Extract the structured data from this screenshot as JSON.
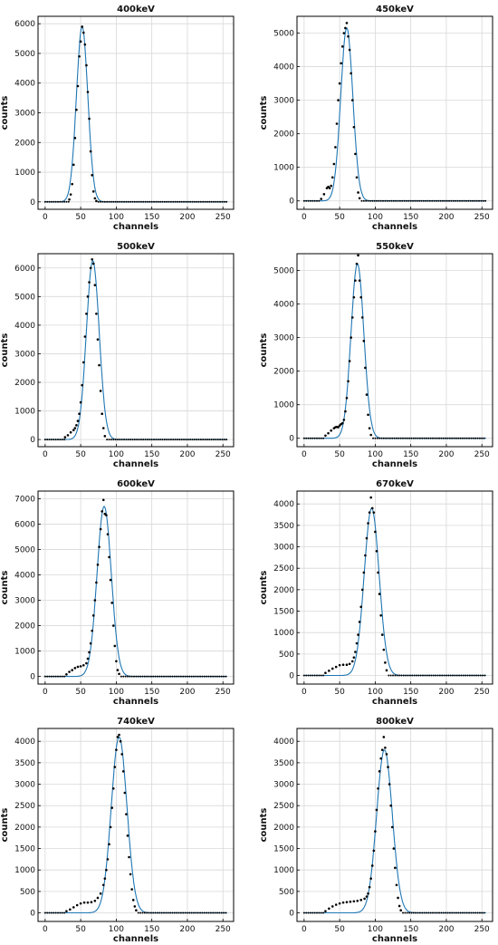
{
  "colors": {
    "fit_line": "#1f77b4",
    "data_points": "#000000",
    "grid": "#d8d8d8"
  },
  "chart_data": [
    {
      "type": "scatter",
      "title": "400keV",
      "xlabel": "channels",
      "ylabel": "counts",
      "xlim": [
        -10,
        265
      ],
      "ylim": [
        -250,
        6250
      ],
      "xticks": [
        0,
        50,
        100,
        150,
        200,
        250
      ],
      "yticks": [
        0,
        1000,
        2000,
        3000,
        4000,
        5000,
        6000
      ],
      "grid": true,
      "peak": {
        "center": 52,
        "amplitude": 5900,
        "sigma": 8
      },
      "series": [
        {
          "kind": "points",
          "x": [
            34,
            36,
            38,
            40,
            42,
            44,
            46,
            48,
            50,
            52,
            54,
            56,
            58,
            60,
            62,
            64,
            66,
            68,
            70,
            72
          ],
          "y": [
            80,
            250,
            600,
            1250,
            2150,
            3100,
            3900,
            4900,
            5400,
            5900,
            5700,
            5300,
            4600,
            3700,
            2800,
            1700,
            900,
            350,
            120,
            30
          ]
        },
        {
          "kind": "fit"
        }
      ]
    },
    {
      "type": "scatter",
      "title": "450keV",
      "xlabel": "channels",
      "ylabel": "counts",
      "xlim": [
        -10,
        265
      ],
      "ylim": [
        -250,
        5500
      ],
      "xticks": [
        0,
        50,
        100,
        150,
        200,
        250
      ],
      "yticks": [
        0,
        1000,
        2000,
        3000,
        4000,
        5000
      ],
      "grid": true,
      "peak": {
        "center": 60,
        "amplitude": 5150,
        "sigma": 8.5
      },
      "series": [
        {
          "kind": "points",
          "x": [
            24,
            28,
            32,
            34,
            36,
            38,
            40,
            42,
            44,
            46,
            48,
            50,
            52,
            54,
            56,
            58,
            60,
            62,
            64,
            66,
            68,
            70,
            72,
            74,
            76,
            78
          ],
          "y": [
            60,
            200,
            380,
            420,
            380,
            450,
            700,
            1100,
            1600,
            2300,
            3000,
            3500,
            4100,
            4600,
            5000,
            5150,
            5300,
            4900,
            4500,
            3800,
            3000,
            2200,
            1400,
            700,
            250,
            80
          ]
        },
        {
          "kind": "fit"
        }
      ]
    },
    {
      "type": "scatter",
      "title": "500keV",
      "xlabel": "channels",
      "ylabel": "counts",
      "xlim": [
        -10,
        265
      ],
      "ylim": [
        -250,
        6500
      ],
      "xticks": [
        0,
        50,
        100,
        150,
        200,
        250
      ],
      "yticks": [
        0,
        1000,
        2000,
        3000,
        4000,
        5000,
        6000
      ],
      "grid": true,
      "peak": {
        "center": 67,
        "amplitude": 6250,
        "sigma": 9
      },
      "series": [
        {
          "kind": "points",
          "x": [
            28,
            32,
            36,
            40,
            42,
            44,
            46,
            48,
            50,
            52,
            54,
            56,
            58,
            60,
            62,
            64,
            66,
            68,
            70,
            72,
            74,
            76,
            78,
            80,
            82,
            84
          ],
          "y": [
            80,
            150,
            250,
            330,
            400,
            500,
            650,
            900,
            1300,
            1900,
            2700,
            3600,
            4400,
            5000,
            5500,
            6000,
            6300,
            6150,
            5400,
            4400,
            3500,
            2600,
            1700,
            900,
            400,
            120
          ]
        },
        {
          "kind": "fit"
        }
      ]
    },
    {
      "type": "scatter",
      "title": "550keV",
      "xlabel": "channels",
      "ylabel": "counts",
      "xlim": [
        -10,
        265
      ],
      "ylim": [
        -250,
        5500
      ],
      "xticks": [
        0,
        50,
        100,
        150,
        200,
        250
      ],
      "yticks": [
        0,
        1000,
        2000,
        3000,
        4000,
        5000
      ],
      "grid": true,
      "peak": {
        "center": 75,
        "amplitude": 5200,
        "sigma": 9
      },
      "series": [
        {
          "kind": "points",
          "x": [
            30,
            34,
            38,
            42,
            44,
            46,
            48,
            50,
            52,
            54,
            56,
            58,
            60,
            62,
            64,
            66,
            68,
            70,
            72,
            74,
            76,
            78,
            80,
            82,
            84,
            86,
            88,
            90,
            92,
            94
          ],
          "y": [
            80,
            150,
            230,
            300,
            330,
            340,
            330,
            380,
            420,
            450,
            550,
            800,
            1200,
            1700,
            2300,
            3000,
            3600,
            4200,
            4700,
            5200,
            5450,
            4700,
            4200,
            3600,
            2900,
            2100,
            1300,
            700,
            300,
            100
          ]
        },
        {
          "kind": "fit"
        }
      ]
    },
    {
      "type": "scatter",
      "title": "600keV",
      "xlabel": "channels",
      "ylabel": "counts",
      "xlim": [
        -10,
        265
      ],
      "ylim": [
        -300,
        7300
      ],
      "xticks": [
        0,
        50,
        100,
        150,
        200,
        250
      ],
      "yticks": [
        0,
        1000,
        2000,
        3000,
        4000,
        5000,
        6000,
        7000
      ],
      "grid": true,
      "peak": {
        "center": 83,
        "amplitude": 6700,
        "sigma": 10
      },
      "series": [
        {
          "kind": "points",
          "x": [
            30,
            34,
            38,
            42,
            46,
            50,
            54,
            58,
            60,
            62,
            64,
            66,
            68,
            70,
            72,
            74,
            76,
            78,
            80,
            82,
            84,
            86,
            88,
            90,
            92,
            94,
            96,
            98,
            100,
            102,
            104
          ],
          "y": [
            80,
            180,
            250,
            330,
            380,
            400,
            440,
            520,
            700,
            950,
            1300,
            1800,
            2400,
            3000,
            3700,
            4400,
            5100,
            5800,
            6500,
            6950,
            6400,
            6350,
            5600,
            4700,
            3800,
            2900,
            2000,
            1200,
            600,
            250,
            100
          ]
        },
        {
          "kind": "fit"
        }
      ]
    },
    {
      "type": "scatter",
      "title": "670keV",
      "xlabel": "channels",
      "ylabel": "counts",
      "xlim": [
        -10,
        265
      ],
      "ylim": [
        -200,
        4300
      ],
      "xticks": [
        0,
        50,
        100,
        150,
        200,
        250
      ],
      "yticks": [
        0,
        500,
        1000,
        1500,
        2000,
        2500,
        3000,
        3500,
        4000
      ],
      "grid": true,
      "peak": {
        "center": 95,
        "amplitude": 3900,
        "sigma": 10.5
      },
      "series": [
        {
          "kind": "points",
          "x": [
            30,
            35,
            40,
            45,
            50,
            55,
            60,
            64,
            68,
            70,
            72,
            74,
            76,
            78,
            80,
            82,
            84,
            86,
            88,
            90,
            92,
            94,
            96,
            98,
            100,
            102,
            104,
            106,
            108,
            110,
            112,
            114,
            116
          ],
          "y": [
            60,
            110,
            160,
            200,
            240,
            250,
            250,
            270,
            330,
            420,
            550,
            750,
            950,
            1250,
            1600,
            2000,
            2400,
            2800,
            3200,
            3550,
            3800,
            4150,
            3900,
            3800,
            3350,
            2900,
            2400,
            1900,
            1400,
            950,
            600,
            300,
            120
          ]
        },
        {
          "kind": "fit"
        }
      ]
    },
    {
      "type": "scatter",
      "title": "740keV",
      "xlabel": "channels",
      "ylabel": "counts",
      "xlim": [
        -10,
        265
      ],
      "ylim": [
        -200,
        4300
      ],
      "xticks": [
        0,
        50,
        100,
        150,
        200,
        250
      ],
      "yticks": [
        0,
        500,
        1000,
        1500,
        2000,
        2500,
        3000,
        3500,
        4000
      ],
      "grid": true,
      "peak": {
        "center": 104,
        "amplitude": 4100,
        "sigma": 11
      },
      "series": [
        {
          "kind": "points",
          "x": [
            30,
            35,
            40,
            45,
            50,
            55,
            60,
            65,
            70,
            74,
            78,
            82,
            84,
            86,
            88,
            90,
            92,
            94,
            96,
            98,
            100,
            102,
            104,
            106,
            108,
            110,
            112,
            114,
            116,
            118,
            120,
            122,
            124,
            126,
            128
          ],
          "y": [
            40,
            80,
            130,
            180,
            220,
            240,
            240,
            250,
            280,
            350,
            450,
            650,
            800,
            1000,
            1250,
            1600,
            2000,
            2450,
            2900,
            3400,
            3800,
            4100,
            4150,
            4000,
            3700,
            3300,
            2800,
            2300,
            1800,
            1300,
            900,
            550,
            300,
            150,
            60
          ]
        },
        {
          "kind": "fit"
        }
      ]
    },
    {
      "type": "scatter",
      "title": "800keV",
      "xlabel": "channels",
      "ylabel": "counts",
      "xlim": [
        -10,
        265
      ],
      "ylim": [
        -200,
        4300
      ],
      "xticks": [
        0,
        50,
        100,
        150,
        200,
        250
      ],
      "yticks": [
        0,
        500,
        1000,
        1500,
        2000,
        2500,
        3000,
        3500,
        4000
      ],
      "grid": true,
      "peak": {
        "center": 113,
        "amplitude": 3800,
        "sigma": 11
      },
      "series": [
        {
          "kind": "points",
          "x": [
            30,
            35,
            40,
            45,
            50,
            55,
            60,
            65,
            70,
            75,
            80,
            85,
            88,
            90,
            92,
            94,
            96,
            98,
            100,
            102,
            104,
            106,
            108,
            110,
            112,
            114,
            116,
            118,
            120,
            122,
            124,
            126,
            128,
            130,
            132,
            134,
            136
          ],
          "y": [
            40,
            100,
            150,
            190,
            220,
            240,
            250,
            260,
            270,
            280,
            300,
            330,
            380,
            450,
            600,
            800,
            1100,
            1450,
            1900,
            2400,
            2900,
            3300,
            3600,
            3800,
            4100,
            3850,
            3700,
            3400,
            3000,
            2500,
            2000,
            1500,
            1050,
            650,
            350,
            160,
            60
          ]
        },
        {
          "kind": "fit"
        }
      ]
    }
  ]
}
